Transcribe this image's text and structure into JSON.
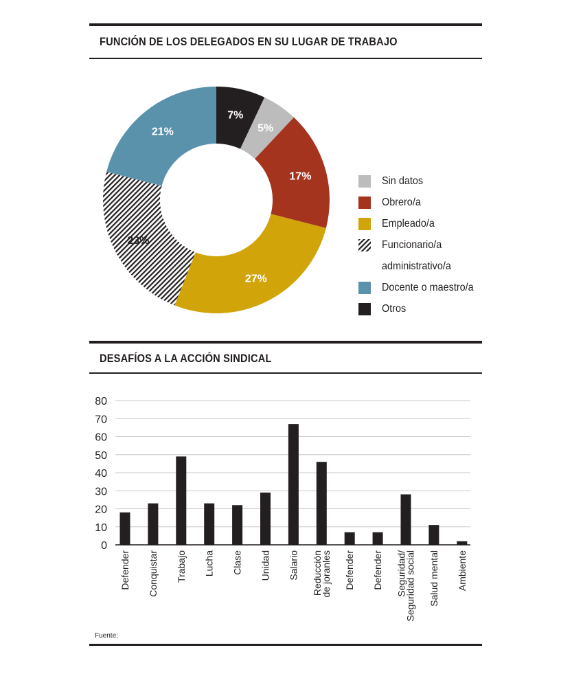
{
  "section1": {
    "title": "FUNCIÓN DE LOS DELEGADOS EN SU LUGAR DE TRABAJO"
  },
  "section2": {
    "title": "DESAFÍOS A LA ACCIÓN SINDICAL"
  },
  "footer": {
    "source_label": "Fuente:"
  },
  "legend": {
    "items": [
      {
        "label": "Sin datos",
        "color": "#bcbcbc",
        "pattern": "solid"
      },
      {
        "label": "Obrero/a",
        "color": "#a5341f",
        "pattern": "solid"
      },
      {
        "label": "Empleado/a",
        "color": "#d1a40a",
        "pattern": "solid"
      },
      {
        "label": "Funcionario/a",
        "label2": "administrativo/a",
        "color": "#231f20",
        "pattern": "hatch"
      },
      {
        "label": "Docente o maestro/a",
        "color": "#5a92ab",
        "pattern": "solid"
      },
      {
        "label": "Otros",
        "color": "#231f20",
        "pattern": "solid"
      }
    ]
  },
  "chart_data": [
    {
      "type": "pie",
      "title": "FUNCIÓN DE LOS DELEGADOS EN SU LUGAR DE TRABAJO",
      "variant": "donut",
      "start_angle_deg": 0,
      "direction": "clockwise",
      "slices": [
        {
          "label": "Otros",
          "value": 7,
          "display": "7%",
          "color": "#231f20",
          "pattern": "solid",
          "text_color": "#ffffff"
        },
        {
          "label": "Sin datos",
          "value": 5,
          "display": "5%",
          "color": "#bcbcbc",
          "pattern": "solid",
          "text_color": "#ffffff"
        },
        {
          "label": "Obrero/a",
          "value": 17,
          "display": "17%",
          "color": "#a5341f",
          "pattern": "solid",
          "text_color": "#ffffff"
        },
        {
          "label": "Empleado/a",
          "value": 27,
          "display": "27%",
          "color": "#d1a40a",
          "pattern": "solid",
          "text_color": "#ffffff"
        },
        {
          "label": "Funcionario/a administrativo/a",
          "value": 23,
          "display": "23%",
          "color": "#231f20",
          "pattern": "hatch",
          "text_color": "#231f20"
        },
        {
          "label": "Docente o maestro/a",
          "value": 21,
          "display": "21%",
          "color": "#5a92ab",
          "pattern": "solid",
          "text_color": "#ffffff"
        }
      ],
      "legend_position": "right"
    },
    {
      "type": "bar",
      "title": "DESAFÍOS A LA ACCIÓN SINDICAL",
      "categories": [
        "Defender",
        "Conquistar",
        "Trabajo",
        "Lucha",
        "Clase",
        "Unidad",
        "Salario",
        "Reducción de joranles",
        "Defender",
        "Defender",
        "Seguridad/ Seguridad social",
        "Salud mental",
        "Ambiente"
      ],
      "category_lines": [
        [
          "Defender"
        ],
        [
          "Conquistar"
        ],
        [
          "Trabajo"
        ],
        [
          "Lucha"
        ],
        [
          "Clase"
        ],
        [
          "Unidad"
        ],
        [
          "Salario"
        ],
        [
          "Reducción",
          "de joranles"
        ],
        [
          "Defender"
        ],
        [
          "Defender"
        ],
        [
          "Seguridad/",
          "Seguridad social"
        ],
        [
          "Salud mental"
        ],
        [
          "Ambiente"
        ]
      ],
      "values": [
        18,
        23,
        49,
        23,
        22,
        29,
        67,
        46,
        7,
        7,
        28,
        11,
        2
      ],
      "xlabel": "",
      "ylabel": "",
      "ylim": [
        0,
        80
      ],
      "yticks": [
        0,
        10,
        20,
        30,
        40,
        50,
        60,
        70,
        80
      ],
      "grid": true,
      "bar_color": "#231f20",
      "grid_color": "#c8c8c8"
    }
  ]
}
